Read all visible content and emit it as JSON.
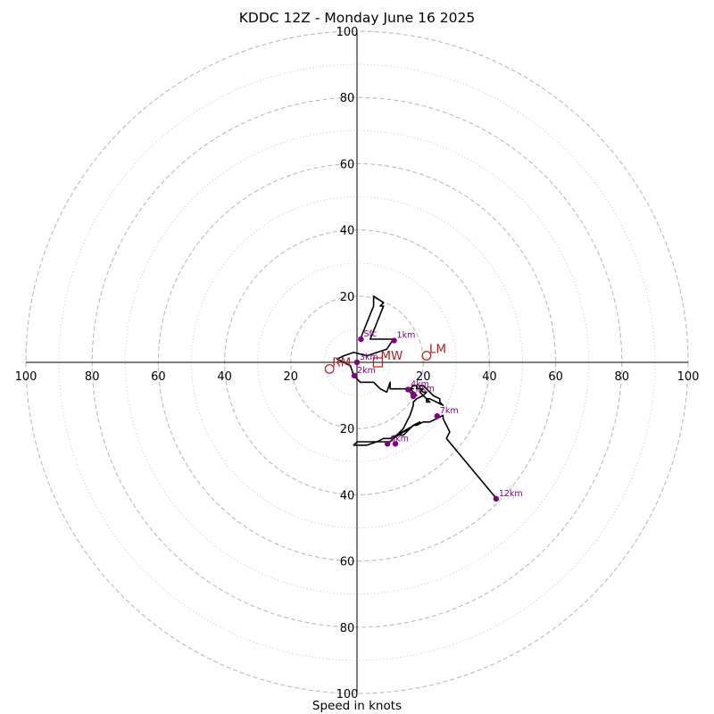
{
  "chart_data": {
    "type": "scatter",
    "title": "KDDC 12Z - Monday June 16 2025",
    "xlabel": "Speed in knots",
    "axis_range": [
      -100,
      100
    ],
    "ring_major": [
      20,
      40,
      60,
      80,
      100
    ],
    "ring_minor": [
      10,
      30,
      50,
      70,
      90
    ],
    "x_tick_labels": [
      {
        "value": -100,
        "label": "100"
      },
      {
        "value": -80,
        "label": "80"
      },
      {
        "value": -60,
        "label": "60"
      },
      {
        "value": -40,
        "label": "40"
      },
      {
        "value": -20,
        "label": "20"
      },
      {
        "value": 20,
        "label": "20"
      },
      {
        "value": 40,
        "label": "40"
      },
      {
        "value": 60,
        "label": "60"
      },
      {
        "value": 80,
        "label": "80"
      },
      {
        "value": 100,
        "label": "100"
      }
    ],
    "y_tick_labels": [
      {
        "value": 100,
        "label": "100"
      },
      {
        "value": 80,
        "label": "80"
      },
      {
        "value": 60,
        "label": "60"
      },
      {
        "value": 40,
        "label": "40"
      },
      {
        "value": 20,
        "label": "20"
      },
      {
        "value": -20,
        "label": "20"
      },
      {
        "value": -40,
        "label": "40"
      },
      {
        "value": -60,
        "label": "60"
      },
      {
        "value": -80,
        "label": "80"
      },
      {
        "value": -100,
        "label": "100"
      }
    ],
    "hodograph_trace": [
      [
        1,
        7
      ],
      [
        3,
        12
      ],
      [
        5,
        17
      ],
      [
        5,
        20
      ],
      [
        8,
        18
      ],
      [
        7,
        17
      ],
      [
        8,
        17
      ],
      [
        6,
        12
      ],
      [
        4,
        7
      ],
      [
        6,
        7
      ],
      [
        11,
        7
      ],
      [
        9,
        4
      ],
      [
        6,
        3
      ],
      [
        3,
        2
      ],
      [
        -1,
        3
      ],
      [
        -4,
        2
      ],
      [
        -6,
        1
      ],
      [
        -4,
        0
      ],
      [
        -2,
        -1
      ],
      [
        -1,
        -4
      ],
      [
        1,
        -6
      ],
      [
        3,
        -6
      ],
      [
        5,
        -6
      ],
      [
        6,
        -7
      ],
      [
        7,
        -8
      ],
      [
        9,
        -9
      ],
      [
        10,
        -6
      ],
      [
        10,
        -8
      ],
      [
        11,
        -8
      ],
      [
        12,
        -8
      ],
      [
        13,
        -8
      ],
      [
        15,
        -8
      ],
      [
        17,
        -8
      ],
      [
        16,
        -8
      ],
      [
        16,
        -9
      ],
      [
        17,
        -10
      ],
      [
        18,
        -10
      ],
      [
        16,
        -8
      ],
      [
        17,
        -7
      ],
      [
        18,
        -7
      ],
      [
        18,
        -8
      ],
      [
        20,
        -8
      ],
      [
        19,
        -9
      ],
      [
        22,
        -12
      ],
      [
        21,
        -12
      ],
      [
        21,
        -11
      ],
      [
        22,
        -11
      ],
      [
        24,
        -12
      ],
      [
        26,
        -13
      ],
      [
        25,
        -12
      ],
      [
        25,
        -11
      ],
      [
        23,
        -10
      ],
      [
        21,
        -8
      ],
      [
        20,
        -7
      ],
      [
        19,
        -7
      ],
      [
        19,
        -8
      ],
      [
        20,
        -9
      ],
      [
        21,
        -9
      ],
      [
        20,
        -10
      ],
      [
        18,
        -11
      ],
      [
        17,
        -12
      ],
      [
        17,
        -13
      ],
      [
        16,
        -16
      ],
      [
        15,
        -18
      ],
      [
        14,
        -20
      ],
      [
        13,
        -21
      ],
      [
        12,
        -22
      ],
      [
        19,
        -18
      ],
      [
        17,
        -19
      ],
      [
        15,
        -21
      ],
      [
        14,
        -22
      ],
      [
        12,
        -22
      ],
      [
        10,
        -23
      ],
      [
        8,
        -23
      ],
      [
        6,
        -24
      ],
      [
        4,
        -24
      ],
      [
        2,
        -24
      ],
      [
        0,
        -24
      ],
      [
        -1,
        -25
      ],
      [
        1,
        -25
      ],
      [
        3,
        -25
      ],
      [
        6,
        -24
      ],
      [
        8,
        -24
      ],
      [
        10,
        -24
      ],
      [
        11,
        -23
      ],
      [
        14,
        -21
      ],
      [
        16,
        -20
      ],
      [
        17,
        -19
      ],
      [
        18,
        -19
      ],
      [
        20,
        -18
      ],
      [
        22,
        -18
      ],
      [
        24,
        -17
      ],
      [
        26,
        -16
      ],
      [
        26,
        -17
      ],
      [
        27,
        -19
      ],
      [
        28,
        -21
      ],
      [
        27,
        -23
      ],
      [
        42,
        -41
      ]
    ],
    "height_points": [
      {
        "label": "Sfc",
        "x": 1.2,
        "y": 7.0
      },
      {
        "label": "1km",
        "x": 11.2,
        "y": 6.6
      },
      {
        "label": "2km",
        "x": -0.8,
        "y": -4.0
      },
      {
        "label": "3km",
        "x": 0.0,
        "y": 0.0
      },
      {
        "label": "4km",
        "x": 15.4,
        "y": -8.2
      },
      {
        "label": "5km",
        "x": 17.0,
        "y": -9.6
      },
      {
        "label": "6km",
        "x": 9.2,
        "y": -24.6
      },
      {
        "label": "7km",
        "x": 24.2,
        "y": -16.2
      },
      {
        "label": "12km",
        "x": 42.0,
        "y": -41.2
      },
      {
        "label": "",
        "x": 17.0,
        "y": -10.2
      },
      {
        "label": "",
        "x": 11.6,
        "y": -24.6
      }
    ],
    "motion_markers": [
      {
        "label": "RM",
        "x": -8.3,
        "y": -2.0,
        "symbol": "circle"
      },
      {
        "label": "LM",
        "x": 21.0,
        "y": 2.0,
        "symbol": "circle"
      },
      {
        "label": "MW",
        "x": 6.3,
        "y": 0.0,
        "symbol": "square"
      }
    ],
    "colors": {
      "trace": "#000000",
      "height_point": "#800080",
      "storm_motion": "#b22222",
      "grid": "#bbbbbb",
      "axis": "#000000"
    },
    "grid": true
  }
}
